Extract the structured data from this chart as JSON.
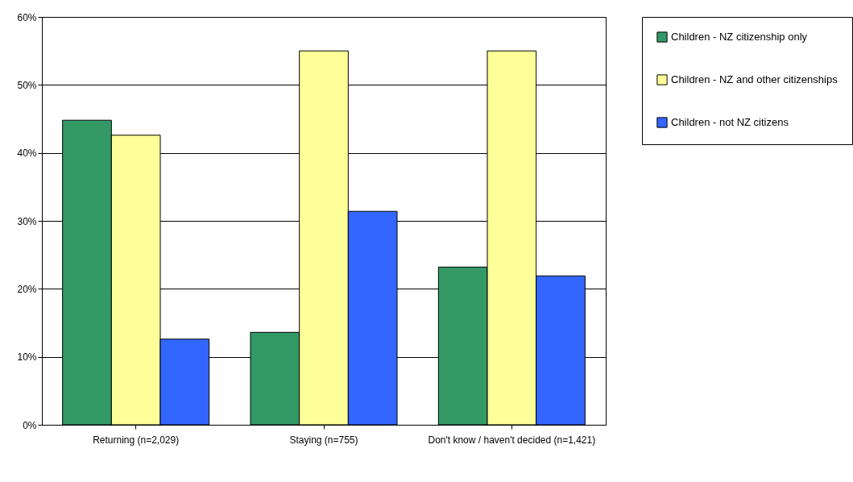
{
  "chart_data": {
    "type": "bar",
    "categories": [
      "Returning (n=2,029)",
      "Staying (n=755)",
      "Don't know / haven't decided (n=1,421)"
    ],
    "series": [
      {
        "name": "Children - NZ citizenship only",
        "color": "#339966",
        "values": [
          44.8,
          13.6,
          23.2
        ]
      },
      {
        "name": "Children - NZ and other citizenships",
        "color": "#ffff99",
        "values": [
          42.6,
          55.0,
          55.0
        ]
      },
      {
        "name": "Children - not NZ citizens",
        "color": "#3366ff",
        "values": [
          12.6,
          31.4,
          21.9
        ]
      }
    ],
    "ylim": [
      0,
      60
    ],
    "yticks": [
      {
        "value": 0,
        "label": "0%"
      },
      {
        "value": 10,
        "label": "10%"
      },
      {
        "value": 20,
        "label": "20%"
      },
      {
        "value": 30,
        "label": "30%"
      },
      {
        "value": 40,
        "label": "40%"
      },
      {
        "value": 50,
        "label": "50%"
      },
      {
        "value": 60,
        "label": "60%"
      }
    ],
    "grid": "y",
    "legend": "right"
  }
}
